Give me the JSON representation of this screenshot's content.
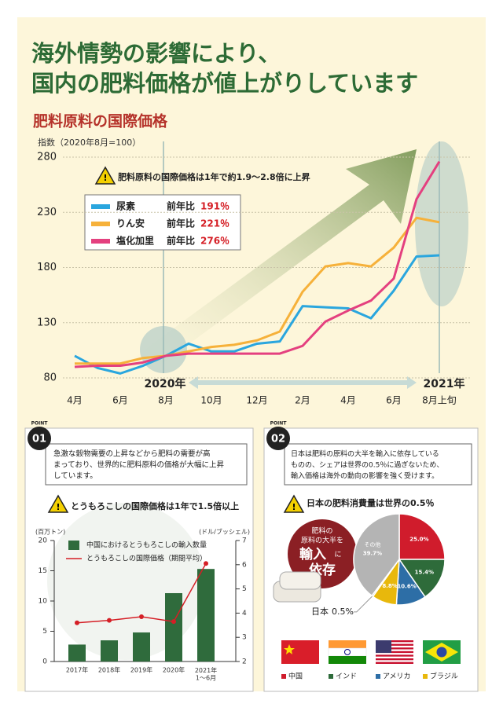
{
  "header": {
    "title_lines": [
      "海外情勢の影響により、",
      "国内の肥料価格が値上がりしています"
    ]
  },
  "chart_data": [
    {
      "type": "line",
      "title": "肥料原料の国際価格",
      "y_label": "指数（2020年8月=100）",
      "annotation": "肥料原料の国際価格は1年で約1.9〜2.8倍に上昇",
      "period_labels": [
        "2020年",
        "2021年"
      ],
      "categories": [
        "4月",
        null,
        "6月",
        null,
        "8月",
        null,
        "10月",
        null,
        "12月",
        null,
        "2月",
        null,
        "4月",
        null,
        "6月",
        null,
        "8月上旬"
      ],
      "ylim": [
        80,
        280
      ],
      "yticks": [
        80,
        130,
        180,
        230,
        280
      ],
      "grid": true,
      "legend_change_label": "前年比",
      "series": [
        {
          "name": "尿素",
          "color": "#2aa6de",
          "change": "191％",
          "values": [
            100,
            89,
            84,
            91,
            100,
            111,
            104,
            104,
            111,
            113,
            145,
            144,
            143,
            134,
            159,
            190,
            191
          ]
        },
        {
          "name": "りん安",
          "color": "#f6b13a",
          "change": "221％",
          "values": [
            93,
            93,
            93,
            98,
            100,
            104,
            108,
            110,
            114,
            122,
            158,
            181,
            184,
            181,
            198,
            225,
            221
          ]
        },
        {
          "name": "塩化加里",
          "color": "#e4407f",
          "change": "276％",
          "values": [
            90,
            91,
            91,
            94,
            100,
            102,
            102,
            102,
            102,
            102,
            109,
            131,
            141,
            150,
            170,
            242,
            276
          ]
        }
      ]
    },
    {
      "type": "bar",
      "title": "とうもろこしの国際価格は1年で1.5倍以上",
      "y_label": "(百万トン)",
      "y2_label": "(ドル/ブッシェル)",
      "categories": [
        "2017年",
        "2018年",
        "2019年",
        "2020年",
        "2021年\n1〜6月"
      ],
      "ylim": [
        0,
        20
      ],
      "yticks": [
        0,
        5,
        10,
        15,
        20
      ],
      "y2lim": [
        2,
        7
      ],
      "y2ticks": [
        2,
        3,
        4,
        5,
        6,
        7
      ],
      "series": [
        {
          "name": "中国におけるとうもろこしの輸入数量",
          "color": "#2f6b3c",
          "values": [
            2.8,
            3.5,
            4.8,
            11.3,
            15.3
          ]
        },
        {
          "name": "とうもろこしの国際価格（期間平均）",
          "color": "#d51f26",
          "axis": "y2",
          "values": [
            3.6,
            3.7,
            3.85,
            3.65,
            6.05
          ]
        }
      ]
    },
    {
      "type": "pie",
      "title": "日本の肥料消費量は世界の0.5％",
      "categories": [
        "中国",
        "インド",
        "アメリカ",
        "ブラジル",
        "日本",
        "その他"
      ],
      "colors": [
        "#d01c2c",
        "#2e6b3a",
        "#2d6ea6",
        "#e8b80c",
        "#777777",
        "#b4b4b4"
      ],
      "values": [
        25.0,
        15.4,
        10.6,
        8.8,
        0.5,
        39.7
      ],
      "value_labels": [
        "25.0%",
        "15.4%",
        "10.6%",
        "8.8%",
        "0.5%",
        "39.7%"
      ]
    }
  ],
  "points": [
    {
      "label": "POINT",
      "number": "01",
      "text_lines": [
        "急激な穀物需要の上昇などから肥料の需要が高",
        "まっており、世界的に肥料原料の価格が大幅に上昇",
        "しています。"
      ]
    },
    {
      "label": "POINT",
      "number": "02",
      "text_lines": [
        "日本は肥料の原料の大半を輸入に依存している",
        "ものの、シェアは世界の0.5％に過ぎないため、",
        "輸入価格は海外の動向の影響を強く受けます。"
      ]
    }
  ],
  "badge": {
    "small_lines": [
      "肥料の",
      "原料の大半を"
    ],
    "big_1": "輸入",
    "particle": "に",
    "big_2": "依存"
  }
}
